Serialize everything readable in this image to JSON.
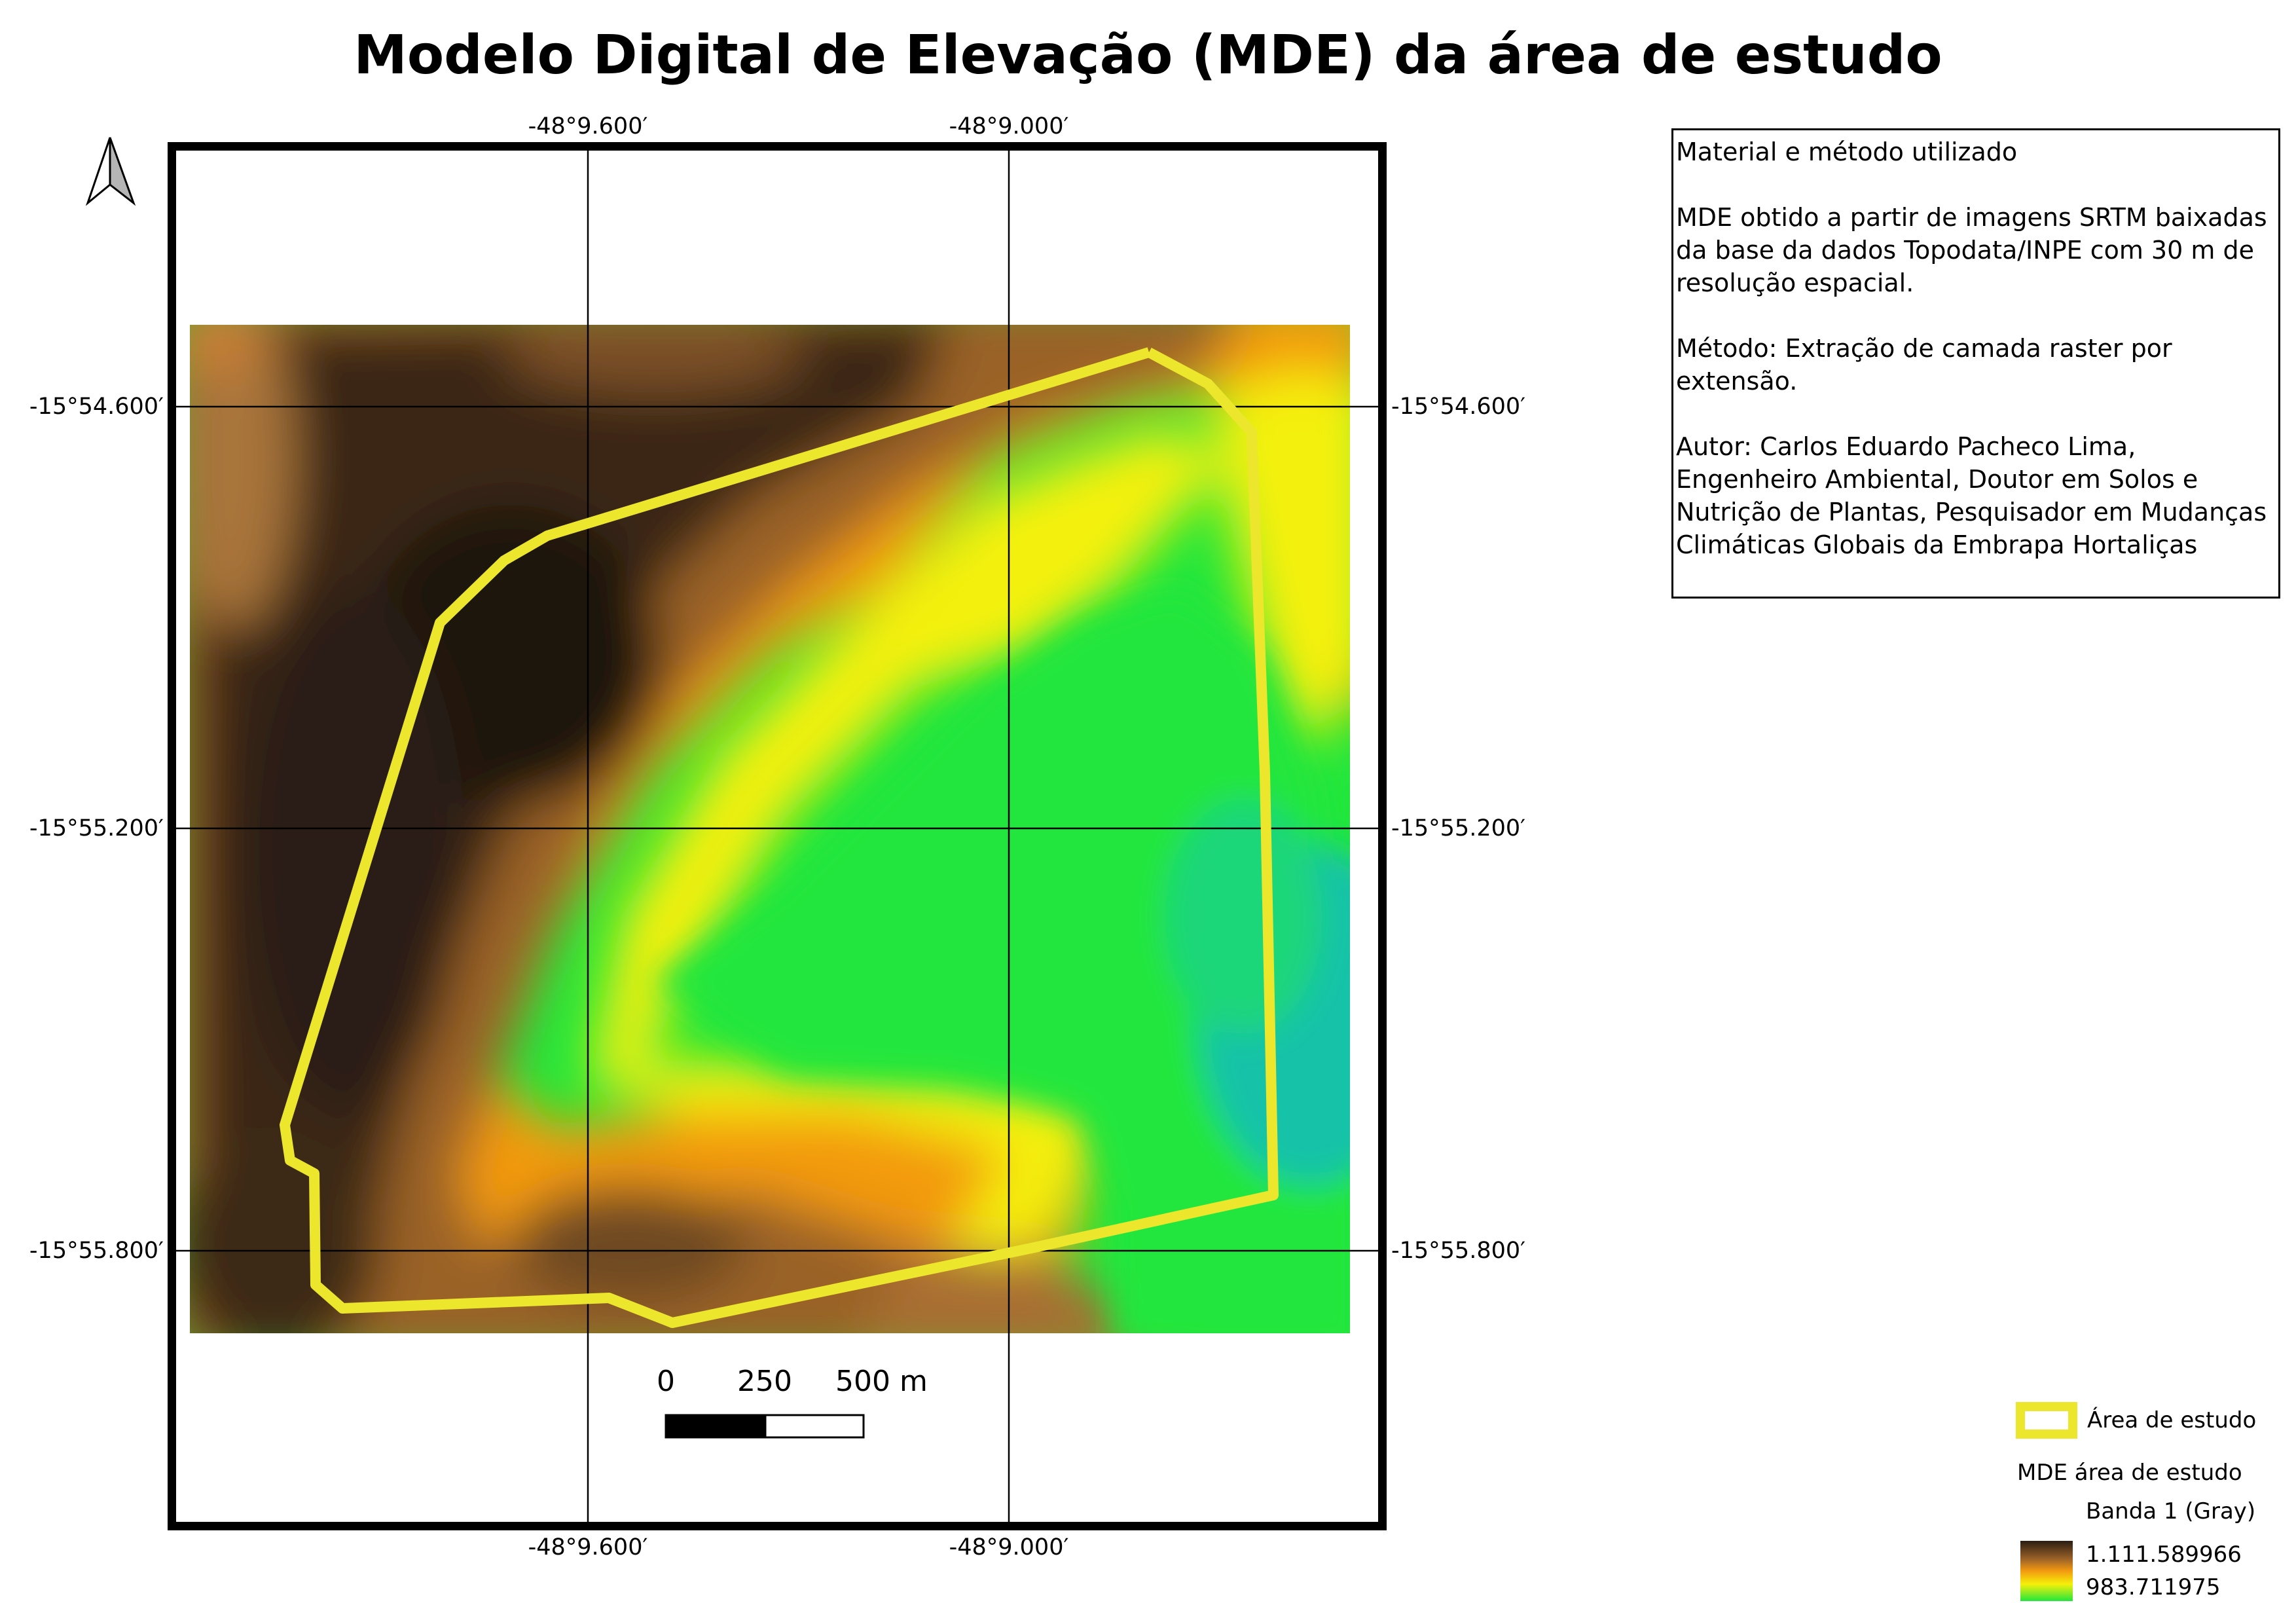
{
  "title": "Modelo Digital de Elevação (MDE) da área de estudo",
  "icons": {
    "north_arrow": "north-arrow-icon"
  },
  "grid": {
    "lon_labels": [
      "-48°9.600′",
      "-48°9.000′"
    ],
    "lat_labels": [
      "-15°54.600′",
      "-15°55.200′",
      "-15°55.800′"
    ]
  },
  "info": {
    "heading": "Material e método utilizado",
    "source": "MDE obtido a partir de imagens SRTM baixadas da base da dados Topodata/INPE com 30 m de resolução espacial.",
    "method": "Método: Extração de camada raster por extensão.",
    "author": "Autor: Carlos Eduardo Pacheco Lima, Engenheiro Ambiental, Doutor em Solos e Nutrição de Plantas, Pesquisador em Mudanças Climáticas Globais da Embrapa Hortaliças"
  },
  "scalebar": {
    "labels": [
      "0",
      "250",
      "500 m"
    ]
  },
  "legend": {
    "area_label": "Área de estudo",
    "area_color": "#ece72c",
    "dem_title": "MDE área de estudo",
    "band_label": "Banda 1 (Gray)",
    "max_value": "1.111.589966",
    "min_value": "983.711975"
  },
  "colors": {
    "dark_brown": "#2a1d12",
    "brown": "#8a5a2a",
    "orange": "#f39a10",
    "yellow": "#f4f00a",
    "green": "#22e63c",
    "teal": "#12c2a8"
  }
}
